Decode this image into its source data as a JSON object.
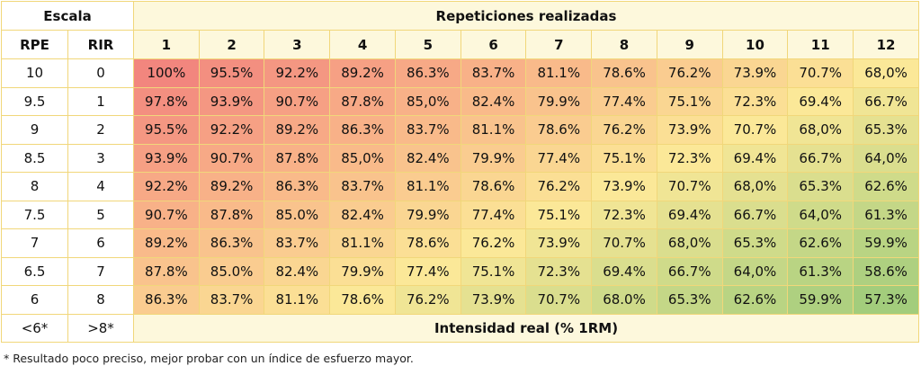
{
  "header": {
    "escala": "Escala",
    "repeticiones": "Repeticiones realizadas",
    "rpe": "RPE",
    "rir": "RIR",
    "reps": [
      "1",
      "2",
      "3",
      "4",
      "5",
      "6",
      "7",
      "8",
      "9",
      "10",
      "11",
      "12"
    ]
  },
  "rows": [
    {
      "rpe": "10",
      "rir": "0",
      "values": [
        "100%",
        "95.5%",
        "92.2%",
        "89.2%",
        "86.3%",
        "83.7%",
        "81.1%",
        "78.6%",
        "76.2%",
        "73.9%",
        "70.7%",
        "68,0%"
      ]
    },
    {
      "rpe": "9.5",
      "rir": "1",
      "values": [
        "97.8%",
        "93.9%",
        "90.7%",
        "87.8%",
        "85,0%",
        "82.4%",
        "79.9%",
        "77.4%",
        "75.1%",
        "72.3%",
        "69.4%",
        "66.7%"
      ]
    },
    {
      "rpe": "9",
      "rir": "2",
      "values": [
        "95.5%",
        "92.2%",
        "89.2%",
        "86.3%",
        "83.7%",
        "81.1%",
        "78.6%",
        "76.2%",
        "73.9%",
        "70.7%",
        "68,0%",
        "65.3%"
      ]
    },
    {
      "rpe": "8.5",
      "rir": "3",
      "values": [
        "93.9%",
        "90.7%",
        "87.8%",
        "85,0%",
        "82.4%",
        "79.9%",
        "77.4%",
        "75.1%",
        "72.3%",
        "69.4%",
        "66.7%",
        "64,0%"
      ]
    },
    {
      "rpe": "8",
      "rir": "4",
      "values": [
        "92.2%",
        "89.2%",
        "86.3%",
        "83.7%",
        "81.1%",
        "78.6%",
        "76.2%",
        "73.9%",
        "70.7%",
        "68,0%",
        "65.3%",
        "62.6%"
      ]
    },
    {
      "rpe": "7.5",
      "rir": "5",
      "values": [
        "90.7%",
        "87.8%",
        "85.0%",
        "82.4%",
        "79.9%",
        "77.4%",
        "75.1%",
        "72.3%",
        "69.4%",
        "66.7%",
        "64,0%",
        "61.3%"
      ]
    },
    {
      "rpe": "7",
      "rir": "6",
      "values": [
        "89.2%",
        "86.3%",
        "83.7%",
        "81.1%",
        "78.6%",
        "76.2%",
        "73.9%",
        "70.7%",
        "68,0%",
        "65.3%",
        "62.6%",
        "59.9%"
      ]
    },
    {
      "rpe": "6.5",
      "rir": "7",
      "values": [
        "87.8%",
        "85.0%",
        "82.4%",
        "79.9%",
        "77.4%",
        "75.1%",
        "72.3%",
        "69.4%",
        "66.7%",
        "64,0%",
        "61.3%",
        "58.6%"
      ]
    },
    {
      "rpe": "6",
      "rir": "8",
      "values": [
        "86.3%",
        "83.7%",
        "81.1%",
        "78.6%",
        "76.2%",
        "73.9%",
        "70.7%",
        "68.0%",
        "65.3%",
        "62.6%",
        "59.9%",
        "57.3%"
      ]
    }
  ],
  "footer": {
    "rpe": "<6*",
    "rir": ">8*",
    "label": "Intensidad real (% 1RM)"
  },
  "note": "* Resultado poco preciso, mejor probar con un índice de esfuerzo mayor."
}
